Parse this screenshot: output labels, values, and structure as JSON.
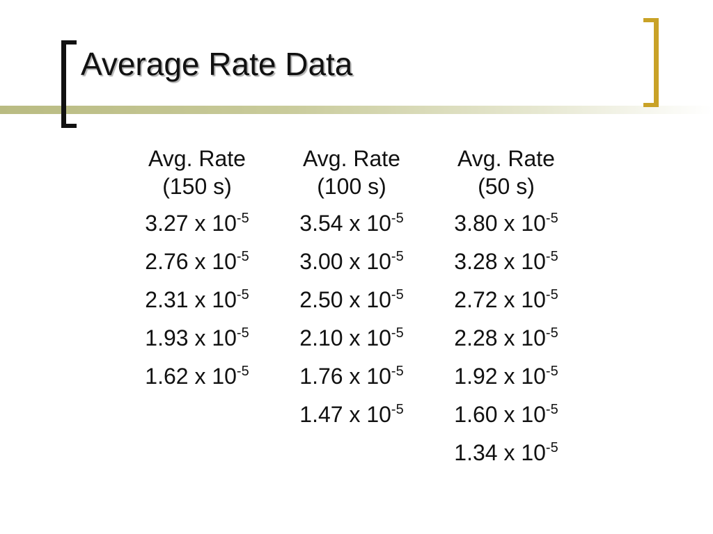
{
  "slide": {
    "title": "Average Rate Data"
  },
  "colors": {
    "bracket_left": "#111111",
    "bracket_right": "#c9a227",
    "rule_gradient_start": "#b9bb82"
  },
  "table": {
    "columns": [
      {
        "header_line1": "Avg. Rate",
        "header_line2": "(150 s)",
        "values": [
          {
            "mantissa": "3.27 x 10",
            "exponent": "-5"
          },
          {
            "mantissa": "2.76 x 10",
            "exponent": "-5"
          },
          {
            "mantissa": "2.31 x 10",
            "exponent": "-5"
          },
          {
            "mantissa": "1.93 x 10",
            "exponent": "-5"
          },
          {
            "mantissa": "1.62 x 10",
            "exponent": "-5"
          }
        ]
      },
      {
        "header_line1": "Avg. Rate",
        "header_line2": "(100 s)",
        "values": [
          {
            "mantissa": "3.54 x 10",
            "exponent": "-5"
          },
          {
            "mantissa": "3.00 x 10",
            "exponent": "-5"
          },
          {
            "mantissa": "2.50 x 10",
            "exponent": "-5"
          },
          {
            "mantissa": "2.10 x 10",
            "exponent": "-5"
          },
          {
            "mantissa": "1.76 x 10",
            "exponent": "-5"
          },
          {
            "mantissa": "1.47 x 10",
            "exponent": "-5"
          }
        ]
      },
      {
        "header_line1": "Avg. Rate",
        "header_line2": "(50 s)",
        "values": [
          {
            "mantissa": "3.80 x 10",
            "exponent": "-5"
          },
          {
            "mantissa": "3.28 x 10",
            "exponent": "-5"
          },
          {
            "mantissa": "2.72 x 10",
            "exponent": "-5"
          },
          {
            "mantissa": "2.28 x 10",
            "exponent": "-5"
          },
          {
            "mantissa": "1.92 x 10",
            "exponent": "-5"
          },
          {
            "mantissa": "1.60 x 10",
            "exponent": "-5"
          },
          {
            "mantissa": "1.34 x 10",
            "exponent": "-5"
          }
        ]
      }
    ]
  }
}
